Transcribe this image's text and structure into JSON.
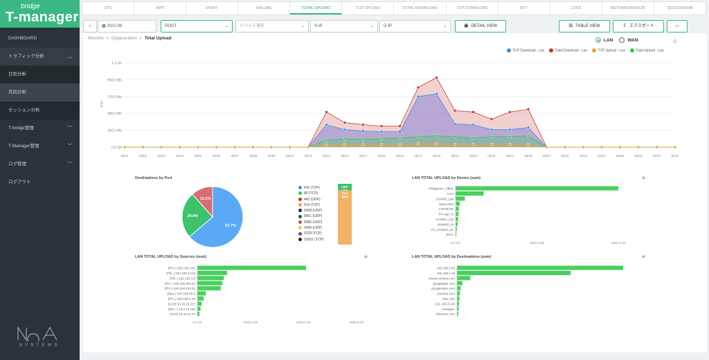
{
  "sidebar": {
    "logo_small": "bridge",
    "logo_big": "T-manager",
    "items": [
      {
        "label": "DASHBOARD"
      },
      {
        "label": "トラフィック分析"
      },
      {
        "label": "日別分析"
      },
      {
        "label": "月別分析"
      },
      {
        "label": "セッション分析"
      },
      {
        "label": "T-bridge管理"
      },
      {
        "label": "T-Manager管理"
      },
      {
        "label": "ログ管理"
      },
      {
        "label": "ログアウト"
      }
    ],
    "brand": "SYSTEMS"
  },
  "tabs": [
    "CPS",
    "APP",
    "RISKY",
    "FAILURE",
    "TOTAL UPLOAD",
    "TCP UPLOAD",
    "TOTAL DOWNLOAD",
    "TCP DOWNLOAD",
    "RTT",
    "LOSS",
    "RETRANSMISSION",
    "SESSION/SHB"
  ],
  "toolbar": {
    "date": "2022-08",
    "scope": "ROOT",
    "device_placeholder": "デバイス選択",
    "sip": "S-IP",
    "dip": "D-IP",
    "detail_view": "DETAIL VIEW",
    "table_view": "TABLE VIEW",
    "export": "エクスポート"
  },
  "breadcrumb": {
    "a": "Monthly",
    "b": "Organization",
    "c": "Total Upload"
  },
  "network": {
    "lan": "LAN",
    "wan": "WAN"
  },
  "colors": {
    "accent": "#39b882",
    "tcp_download": "#3d8fe0",
    "total_download": "#c0392b",
    "tcp_upload": "#f0a030",
    "total_upload": "#2ecc40"
  },
  "chart_data": [
    {
      "type": "area",
      "title": "",
      "ylabel": "kbps",
      "ylim": [
        0,
        1200
      ],
      "yticks": [
        "0.0 Gb",
        "240.0 Mb",
        "480.0 Mb",
        "720.0 Mb",
        "960.0 Mb",
        "1.2 Gb"
      ],
      "x": [
        "08/01",
        "08/02",
        "08/03",
        "08/04",
        "08/05",
        "08/06",
        "08/07",
        "08/08",
        "08/09",
        "08/10",
        "08/11",
        "08/12",
        "08/13",
        "08/14",
        "08/15",
        "08/16",
        "08/17",
        "08/18",
        "08/19",
        "08/20",
        "08/21",
        "08/22",
        "08/23",
        "08/24",
        "08/25",
        "08/26",
        "08/27",
        "08/28",
        "08/29",
        "08/30",
        "08/31"
      ],
      "series": [
        {
          "name": "TCP Download - Lan",
          "color": "#3d8fe0",
          "values": [
            0,
            0,
            0,
            0,
            0,
            0,
            0,
            0,
            0,
            0,
            0,
            320,
            250,
            230,
            220,
            220,
            720,
            760,
            330,
            320,
            250,
            250,
            280,
            0,
            0,
            0,
            0,
            0,
            0,
            0,
            0
          ]
        },
        {
          "name": "Total Download - Lan",
          "color": "#c0392b",
          "values": [
            0,
            0,
            0,
            0,
            0,
            0,
            0,
            0,
            0,
            0,
            0,
            500,
            350,
            320,
            300,
            300,
            850,
            990,
            520,
            500,
            400,
            500,
            540,
            0,
            0,
            0,
            0,
            0,
            0,
            0,
            0
          ]
        },
        {
          "name": "TCP Upload - Lan",
          "color": "#f0a030",
          "values": [
            0,
            0,
            0,
            0,
            0,
            0,
            0,
            0,
            0,
            0,
            0,
            30,
            40,
            40,
            40,
            40,
            50,
            50,
            40,
            40,
            40,
            40,
            40,
            0,
            0,
            0,
            0,
            0,
            0,
            0,
            0
          ]
        },
        {
          "name": "Total Upload - Lan",
          "color": "#2ecc40",
          "values": [
            0,
            0,
            0,
            0,
            0,
            0,
            0,
            0,
            0,
            0,
            0,
            100,
            120,
            110,
            120,
            130,
            150,
            160,
            150,
            130,
            150,
            150,
            160,
            0,
            0,
            0,
            0,
            0,
            0,
            0,
            0
          ]
        }
      ],
      "legend": "top-right"
    },
    {
      "type": "pie",
      "title": "Destinations by Port",
      "slices": [
        {
          "label": "63.7%",
          "value": 63.7,
          "color": "#5aa9f6"
        },
        {
          "label": "24.8%",
          "value": 24.8,
          "color": "#3cc36b"
        },
        {
          "label": "11.5%",
          "value": 11.5,
          "color": "#d96c72"
        }
      ],
      "ports": [
        {
          "name": "443 (TCP)",
          "color": "#3d8fe0"
        },
        {
          "name": "80 (TCP)",
          "color": "#2ecc40"
        },
        {
          "name": "443 (UDP)",
          "color": "#c0392b"
        },
        {
          "name": "514 (TCP)",
          "color": "#f0a030"
        },
        {
          "name": "5408 (UDP)",
          "color": "#1a2b4a"
        },
        {
          "name": "8051 (UDP)",
          "color": "#0c5f4e"
        },
        {
          "name": "8080 (UDP)",
          "color": "#b5555c"
        },
        {
          "name": "3496 (UDP)",
          "color": "#f2c94c"
        },
        {
          "name": "5228 (TCP)",
          "color": "#7b3fa0"
        },
        {
          "name": "10201 (TCP)",
          "color": "#222222"
        }
      ],
      "protocol": [
        {
          "label": "UDP",
          "pct": "11%",
          "value": 11,
          "color": "#3cc36b"
        },
        {
          "label": "TCP",
          "pct": "89%",
          "value": 89,
          "color": "#f2b266"
        }
      ]
    },
    {
      "type": "bar",
      "title": "LAN TOTAL UPLOAD by Device (sum)",
      "categories": [
        "Philippines_Office",
        "LGH",
        "DJAKM_Lab",
        "SpaceTest",
        "CPAMKYE",
        "PV-Agri_III",
        "SANBO_HQ",
        "HNMND_III",
        "YC_CHOKO_3L",
        "BICA"
      ],
      "values": [
        4000,
        690,
        230,
        100,
        80,
        70,
        60,
        50,
        30,
        20
      ],
      "xticks": [
        "0.0 Gb",
        "2000.0 Gb",
        "4000.0 Gb"
      ],
      "xlim": [
        0,
        4000
      ]
    },
    {
      "type": "bar",
      "title": "LAN TOTAL UPLOAD by Sources (sum)",
      "categories": [
        "[Phi..] 192.168.3.92",
        "[Phi..] 192.168.3.219",
        "[Phi..] 192.168.3.9",
        "[Phi..] 192.168.253.20",
        "[Phi..] 192.168.253.21",
        "[Spa..] 192.168.56.8",
        "[Phi..] 192.168.1.40",
        "[LGH] 10.10.10.227",
        "[SEA..] 10.0.70.168",
        "[LGH] 10.10.11.41"
      ],
      "values": [
        2050,
        560,
        500,
        470,
        440,
        160,
        120,
        80,
        60,
        40
      ],
      "xticks": [
        "0.0 Gb",
        "1000.0 Gb",
        "2000.0 Gb",
        "3000.0 Gb"
      ],
      "xlim": [
        0,
        3000
      ]
    },
    {
      "type": "bar",
      "title": "LAN TOTAL UPLOAD by Destinations (sum)",
      "categories": [
        "192.168.1.40",
        "192.168.1.15",
        "icloud-content.com",
        "googleapis.com",
        "googlevideo.com",
        "youtube.com",
        "aws.com",
        "211.100.23.60",
        "liveapps.",
        "dhunnoir.com"
      ],
      "values": [
        4000,
        2740,
        320,
        130,
        90,
        70,
        60,
        50,
        40,
        30
      ],
      "xticks": [],
      "xlim": [
        0,
        4000
      ]
    }
  ]
}
